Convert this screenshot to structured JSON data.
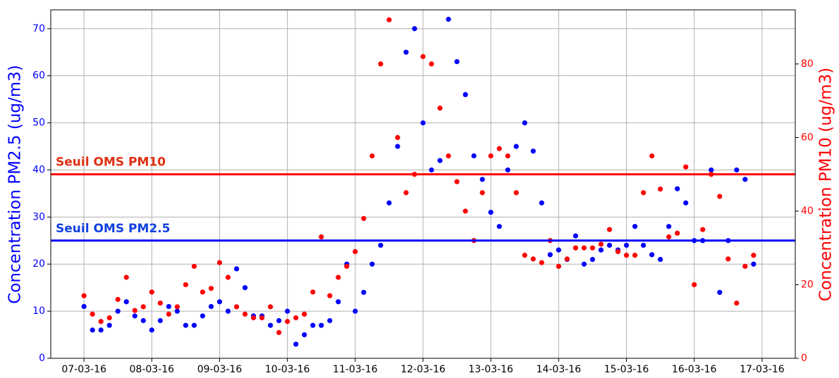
{
  "chart_data": {
    "type": "scatter",
    "y_label": "Concentration PM2.5 (ug/m3)",
    "y2_label": "Concentration PM10 (ug/m3)",
    "x": [
      0,
      0.125,
      0.25,
      0.375,
      0.5,
      0.625,
      0.75,
      0.875,
      1,
      1.125,
      1.25,
      1.375,
      1.5,
      1.625,
      1.75,
      1.875,
      2,
      2.125,
      2.25,
      2.375,
      2.5,
      2.625,
      2.75,
      2.875,
      3,
      3.125,
      3.25,
      3.375,
      3.5,
      3.625,
      3.75,
      3.875,
      4,
      4.125,
      4.25,
      4.375,
      4.5,
      4.625,
      4.75,
      4.875,
      5,
      5.125,
      5.25,
      5.375,
      5.5,
      5.625,
      5.75,
      5.875,
      6,
      6.125,
      6.25,
      6.375,
      6.5,
      6.625,
      6.75,
      6.875,
      7,
      7.125,
      7.25,
      7.375,
      7.5,
      7.625,
      7.75,
      7.875,
      8,
      8.125,
      8.25,
      8.375,
      8.5,
      8.625,
      8.75,
      8.875,
      9,
      9.125,
      9.25,
      9.375,
      9.5,
      9.625,
      9.75,
      9.875
    ],
    "series": [
      {
        "name": "PM2.5",
        "color": "#0000ff",
        "axis": "y",
        "values": [
          11,
          6,
          6,
          7,
          10,
          12,
          9,
          8,
          6,
          8,
          11,
          10,
          7,
          7,
          9,
          11,
          12,
          10,
          19,
          15,
          9,
          9,
          7,
          8,
          10,
          3,
          5,
          7,
          7,
          8,
          12,
          20,
          10,
          14,
          20,
          24,
          33,
          45,
          65,
          70,
          50,
          40,
          42,
          72,
          63,
          56,
          43,
          38,
          31,
          28,
          40,
          45,
          50,
          44,
          33,
          22,
          23,
          21,
          26,
          20,
          21,
          23,
          24,
          23,
          24,
          28,
          24,
          22,
          21,
          28,
          36,
          33,
          25,
          25,
          40,
          14,
          25,
          40,
          38,
          20
        ]
      },
      {
        "name": "PM10",
        "color": "#ff0000",
        "axis": "y2",
        "values": [
          17,
          12,
          10,
          11,
          16,
          22,
          13,
          14,
          18,
          15,
          12,
          14,
          20,
          25,
          18,
          19,
          26,
          22,
          14,
          12,
          11,
          11,
          14,
          7,
          10,
          11,
          12,
          18,
          33,
          17,
          22,
          25,
          29,
          38,
          55,
          80,
          92,
          60,
          45,
          50,
          82,
          80,
          68,
          55,
          48,
          40,
          32,
          45,
          55,
          57,
          55,
          45,
          28,
          27,
          26,
          32,
          25,
          27,
          30,
          30,
          30,
          31,
          35,
          29,
          28,
          28,
          45,
          55,
          46,
          33,
          34,
          52,
          20,
          35,
          50,
          44,
          27,
          15,
          25,
          28
        ]
      }
    ],
    "thresholds": [
      {
        "label": "Seuil OMS PM10",
        "value": 50,
        "axis": "y2",
        "color": "#ff0000",
        "text_color": "#e03010"
      },
      {
        "label": "Seuil OMS PM2.5",
        "value": 25,
        "axis": "y",
        "color": "#0000ff",
        "text_color": "#1040e0"
      }
    ],
    "xlim": [
      -0.49,
      10.49
    ],
    "xticks": [
      {
        "value": 0,
        "label": "07-03-16"
      },
      {
        "value": 1,
        "label": "08-03-16"
      },
      {
        "value": 2,
        "label": "09-03-16"
      },
      {
        "value": 3,
        "label": "10-03-16"
      },
      {
        "value": 4,
        "label": "11-03-16"
      },
      {
        "value": 5,
        "label": "12-03-16"
      },
      {
        "value": 6,
        "label": "13-03-16"
      },
      {
        "value": 7,
        "label": "14-03-16"
      },
      {
        "value": 8,
        "label": "15-03-16"
      },
      {
        "value": 9,
        "label": "16-03-16"
      },
      {
        "value": 10,
        "label": "17-03-16"
      }
    ],
    "ylim": [
      0,
      74
    ],
    "yticks": [
      0,
      10,
      20,
      30,
      40,
      50,
      60,
      70
    ],
    "y2lim": [
      0,
      94.7
    ],
    "y2ticks": [
      0,
      20,
      40,
      60,
      80
    ],
    "grid": true
  }
}
